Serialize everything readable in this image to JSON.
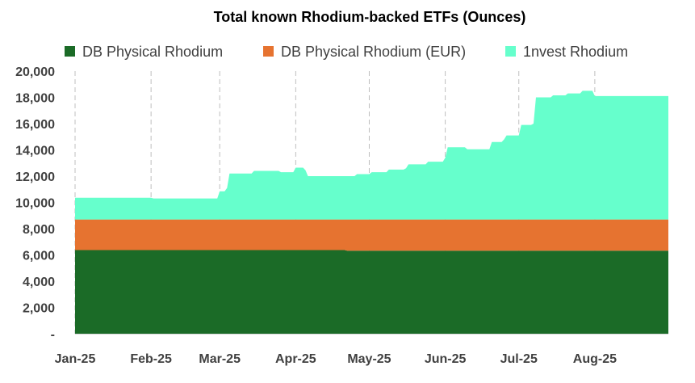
{
  "chart_data": {
    "type": "area",
    "stacked": true,
    "title": "Total known Rhodium-backed ETFs (Ounces)",
    "xlabel": "",
    "ylabel": "",
    "ylim": [
      0,
      20000
    ],
    "y_ticks": [
      {
        "value": 0,
        "label": "-"
      },
      {
        "value": 2000,
        "label": "2,000"
      },
      {
        "value": 4000,
        "label": "4,000"
      },
      {
        "value": 6000,
        "label": "6,000"
      },
      {
        "value": 8000,
        "label": "8,000"
      },
      {
        "value": 10000,
        "label": "10,000"
      },
      {
        "value": 12000,
        "label": "12,000"
      },
      {
        "value": 14000,
        "label": "14,000"
      },
      {
        "value": 16000,
        "label": "16,000"
      },
      {
        "value": 18000,
        "label": "18,000"
      },
      {
        "value": 20000,
        "label": "20,000"
      }
    ],
    "x_range": [
      "2025-01-01",
      "2025-08-31"
    ],
    "x_ticks": [
      {
        "date": "2025-01-01",
        "label": "Jan-25"
      },
      {
        "date": "2025-02-01",
        "label": "Feb-25"
      },
      {
        "date": "2025-03-01",
        "label": "Mar-25"
      },
      {
        "date": "2025-04-01",
        "label": "Apr-25"
      },
      {
        "date": "2025-05-01",
        "label": "May-25"
      },
      {
        "date": "2025-06-01",
        "label": "Jun-25"
      },
      {
        "date": "2025-07-01",
        "label": "Jul-25"
      },
      {
        "date": "2025-08-01",
        "label": "Aug-25"
      }
    ],
    "grid": {
      "vertical": true,
      "horizontal": false,
      "style": "dashed"
    },
    "legend_position": "top",
    "series": [
      {
        "name": "DB Physical Rhodium",
        "color": "#1b6b27",
        "points": [
          [
            "2025-01-01",
            6370
          ],
          [
            "2025-04-21",
            6370
          ],
          [
            "2025-04-22",
            6320
          ],
          [
            "2025-08-31",
            6320
          ]
        ]
      },
      {
        "name": "DB Physical Rhodium (EUR)",
        "color": "#e67330",
        "points": [
          [
            "2025-01-01",
            2330
          ],
          [
            "2025-04-21",
            2330
          ],
          [
            "2025-04-22",
            2380
          ],
          [
            "2025-08-31",
            2380
          ]
        ]
      },
      {
        "name": "1nvest Rhodium",
        "color": "#66ffcc",
        "points": [
          [
            "2025-01-01",
            1650
          ],
          [
            "2025-02-01",
            1650
          ],
          [
            "2025-02-02",
            1600
          ],
          [
            "2025-02-28",
            1600
          ],
          [
            "2025-03-01",
            2150
          ],
          [
            "2025-03-04",
            2400
          ],
          [
            "2025-03-05",
            3500
          ],
          [
            "2025-03-14",
            3500
          ],
          [
            "2025-03-15",
            3700
          ],
          [
            "2025-03-25",
            3700
          ],
          [
            "2025-03-26",
            3600
          ],
          [
            "2025-03-31",
            3600
          ],
          [
            "2025-04-01",
            3950
          ],
          [
            "2025-04-05",
            3750
          ],
          [
            "2025-04-06",
            3300
          ],
          [
            "2025-04-25",
            3300
          ],
          [
            "2025-04-26",
            3450
          ],
          [
            "2025-05-01",
            3450
          ],
          [
            "2025-05-02",
            3600
          ],
          [
            "2025-05-08",
            3600
          ],
          [
            "2025-05-09",
            3800
          ],
          [
            "2025-05-16",
            3900
          ],
          [
            "2025-05-17",
            4200
          ],
          [
            "2025-05-24",
            4200
          ],
          [
            "2025-05-25",
            4400
          ],
          [
            "2025-06-01",
            4700
          ],
          [
            "2025-06-02",
            5500
          ],
          [
            "2025-06-09",
            5500
          ],
          [
            "2025-06-10",
            5350
          ],
          [
            "2025-06-19",
            5350
          ],
          [
            "2025-06-20",
            5900
          ],
          [
            "2025-06-25",
            6100
          ],
          [
            "2025-06-26",
            6400
          ],
          [
            "2025-07-01",
            6400
          ],
          [
            "2025-07-02",
            7200
          ],
          [
            "2025-07-07",
            7300
          ],
          [
            "2025-07-08",
            9300
          ],
          [
            "2025-07-14",
            9300
          ],
          [
            "2025-07-15",
            9450
          ],
          [
            "2025-07-21",
            9600
          ],
          [
            "2025-07-27",
            9800
          ],
          [
            "2025-07-31",
            9800
          ],
          [
            "2025-08-01",
            9400
          ],
          [
            "2025-08-31",
            9400
          ]
        ]
      }
    ]
  }
}
